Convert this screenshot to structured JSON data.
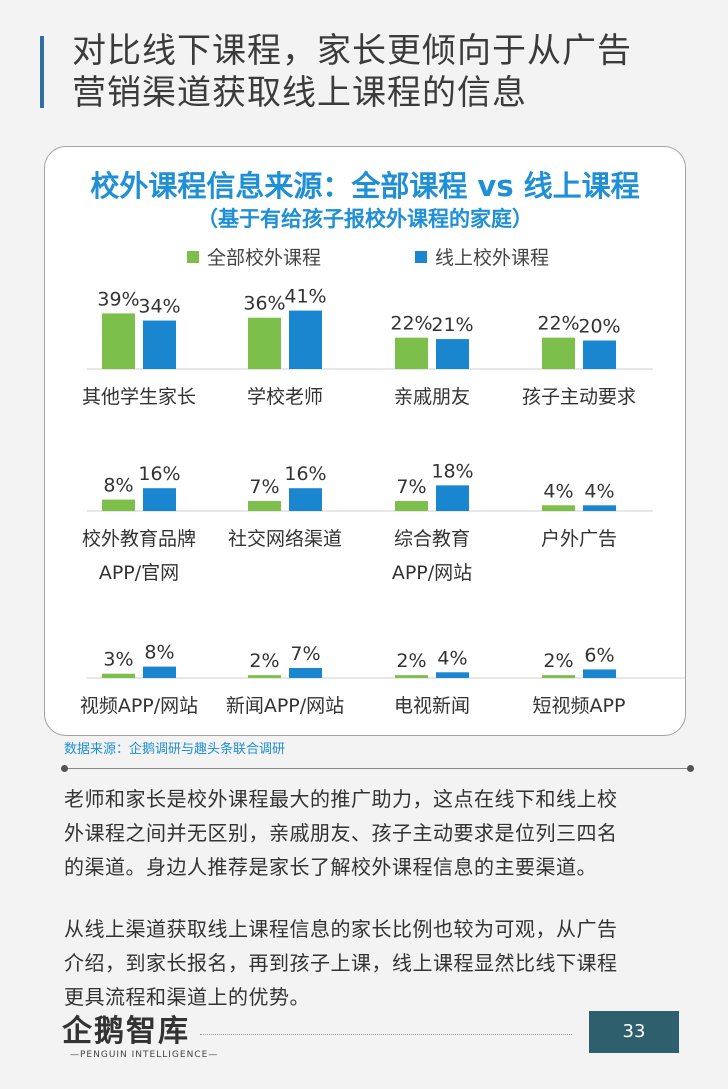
{
  "page": {
    "title_line1": "对比线下课程，家长更倾向于从广告",
    "title_line2": "营销渠道获取线上课程的信息"
  },
  "chart_data": {
    "type": "bar",
    "title": "校外课程信息来源：全部课程 vs 线上课程",
    "subtitle": "（基于有给孩子报校外课程的家庭）",
    "value_format": "percent",
    "legend_position": "top",
    "series": [
      {
        "name": "全部校外课程",
        "color": "#7cbf4b"
      },
      {
        "name": "线上校外课程",
        "color": "#1a86d0"
      }
    ],
    "categories": [
      {
        "label": [
          "其他学生家长"
        ],
        "values": [
          39,
          34
        ]
      },
      {
        "label": [
          "学校老师"
        ],
        "values": [
          36,
          41
        ]
      },
      {
        "label": [
          "亲戚朋友"
        ],
        "values": [
          22,
          21
        ]
      },
      {
        "label": [
          "孩子主动要求"
        ],
        "values": [
          22,
          20
        ]
      },
      {
        "label": [
          "校外教育品牌",
          "APP/官网"
        ],
        "values": [
          8,
          16
        ]
      },
      {
        "label": [
          "社交网络渠道"
        ],
        "values": [
          7,
          16
        ]
      },
      {
        "label": [
          "综合教育",
          "APP/网站"
        ],
        "values": [
          7,
          18
        ]
      },
      {
        "label": [
          "户外广告"
        ],
        "values": [
          4,
          4
        ]
      },
      {
        "label": [
          "视频APP/网站"
        ],
        "values": [
          3,
          8
        ]
      },
      {
        "label": [
          "新闻APP/网站"
        ],
        "values": [
          2,
          7
        ]
      },
      {
        "label": [
          "电视新闻"
        ],
        "values": [
          2,
          4
        ]
      },
      {
        "label": [
          "短视频APP"
        ],
        "values": [
          2,
          6
        ]
      }
    ]
  },
  "source": "数据来源：企鹅调研与趣头条联合调研",
  "paragraphs": [
    [
      "老师和家长是校外课程最大的推广助力，这点在线下和线上校",
      "外课程之间并无区别，亲戚朋友、孩子主动要求是位列三四名",
      "的渠道。身边人推荐是家长了解校外课程信息的主要渠道。"
    ],
    [
      "从线上渠道获取线上课程信息的家长比例也较为可观，从广告",
      "介绍，到家长报名，再到孩子上课，线上课程显然比线下课程",
      "更具流程和渠道上的优势。"
    ]
  ],
  "footer": {
    "logo": "企鹅智库",
    "logo_sub": "—PENGUIN INTELLIGENCE—",
    "page_number": "33"
  }
}
